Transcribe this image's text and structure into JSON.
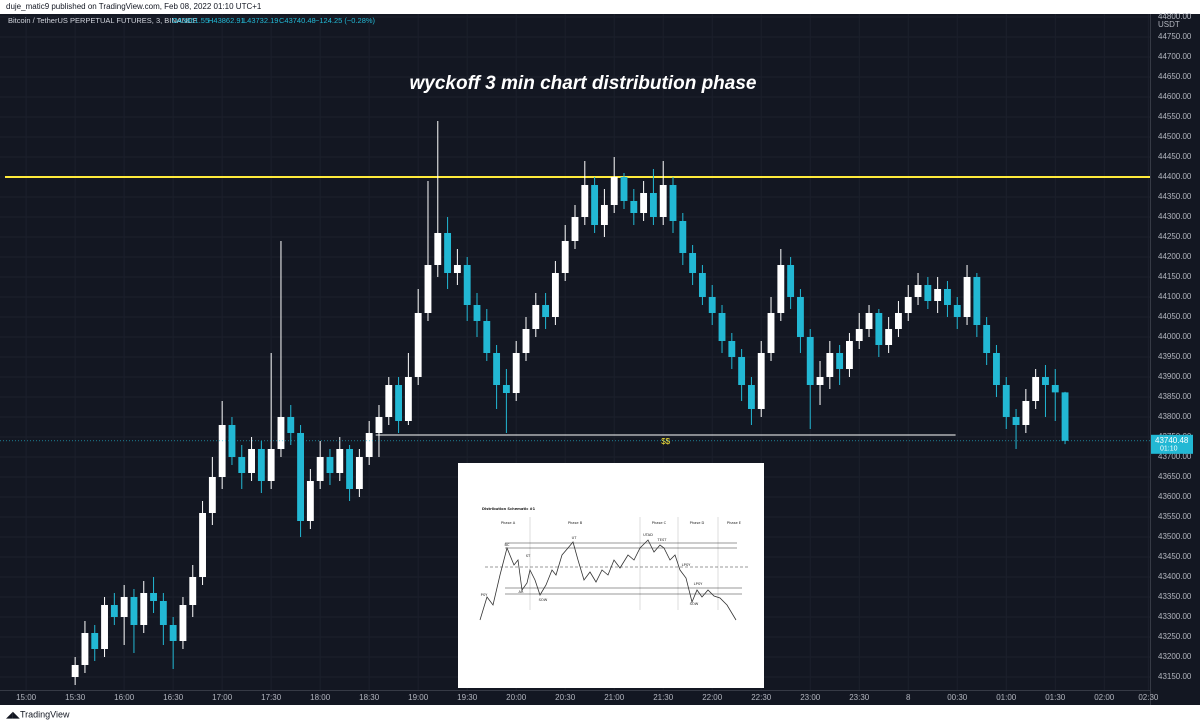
{
  "header": {
    "publisher": "duje_matic9 published on TradingView.com, Feb 08, 2022 01:10 UTC+1",
    "brand": "TradingView"
  },
  "chart_data": {
    "type": "candlestick",
    "title": "wyckoff 3 min chart distribution phase",
    "symbol": "Bitcoin / TetherUS PERPETUAL FUTURES, 3, BINANCE",
    "ohlc_text": [
      "O43861.55",
      "H43862.91",
      "L43732.19",
      "C43740.48",
      "−124.25 (−0.28%)"
    ],
    "currency": "USDT",
    "last_time": "01:10",
    "up_color": "#ffffff",
    "down_color": "#22b8d4",
    "xlim": [
      -16,
      688
    ],
    "ylim": [
      43117.5,
      44807.5
    ],
    "xticks": [
      {
        "value": 0,
        "label": "15:00"
      },
      {
        "value": 30,
        "label": "15:30"
      },
      {
        "value": 60,
        "label": "16:00"
      },
      {
        "value": 90,
        "label": "16:30"
      },
      {
        "value": 120,
        "label": "17:00"
      },
      {
        "value": 150,
        "label": "17:30"
      },
      {
        "value": 180,
        "label": "18:00"
      },
      {
        "value": 210,
        "label": "18:30"
      },
      {
        "value": 240,
        "label": "19:00"
      },
      {
        "value": 270,
        "label": "19:30"
      },
      {
        "value": 300,
        "label": "20:00"
      },
      {
        "value": 330,
        "label": "20:30"
      },
      {
        "value": 360,
        "label": "21:00"
      },
      {
        "value": 390,
        "label": "21:30"
      },
      {
        "value": 420,
        "label": "22:00"
      },
      {
        "value": 450,
        "label": "22:30"
      },
      {
        "value": 480,
        "label": "23:00"
      },
      {
        "value": 510,
        "label": "23:30"
      },
      {
        "value": 540,
        "label": "8"
      },
      {
        "value": 570,
        "label": "00:30"
      },
      {
        "value": 600,
        "label": "01:00"
      },
      {
        "value": 630,
        "label": "01:30"
      },
      {
        "value": 660,
        "label": "02:00"
      },
      {
        "value": 687,
        "label": "02:30"
      }
    ],
    "yticks": [
      {
        "value": 44800,
        "label": "44800.00"
      },
      {
        "value": 44750,
        "label": "44750.00"
      },
      {
        "value": 44700,
        "label": "44700.00"
      },
      {
        "value": 44650,
        "label": "44650.00"
      },
      {
        "value": 44600,
        "label": "44600.00"
      },
      {
        "value": 44550,
        "label": "44550.00"
      },
      {
        "value": 44500,
        "label": "44500.00"
      },
      {
        "value": 44450,
        "label": "44450.00"
      },
      {
        "value": 44400,
        "label": "44400.00"
      },
      {
        "value": 44350,
        "label": "44350.00"
      },
      {
        "value": 44300,
        "label": "44300.00"
      },
      {
        "value": 44250,
        "label": "44250.00"
      },
      {
        "value": 44200,
        "label": "44200.00"
      },
      {
        "value": 44150,
        "label": "44150.00"
      },
      {
        "value": 44100,
        "label": "44100.00"
      },
      {
        "value": 44050,
        "label": "44050.00"
      },
      {
        "value": 44000,
        "label": "44000.00"
      },
      {
        "value": 43950,
        "label": "43950.00"
      },
      {
        "value": 43900,
        "label": "43900.00"
      },
      {
        "value": 43850,
        "label": "43850.00"
      },
      {
        "value": 43800,
        "label": "43800.00"
      },
      {
        "value": 43750,
        "label": "43750.00"
      },
      {
        "value": 43700,
        "label": "43700.00"
      },
      {
        "value": 43650,
        "label": "43650.00"
      },
      {
        "value": 43600,
        "label": "43600.00"
      },
      {
        "value": 43550,
        "label": "43550.00"
      },
      {
        "value": 43500,
        "label": "43500.00"
      },
      {
        "value": 43450,
        "label": "43450.00"
      },
      {
        "value": 43400,
        "label": "43400.00"
      },
      {
        "value": 43350,
        "label": "43350.00"
      },
      {
        "value": 43300,
        "label": "43300.00"
      },
      {
        "value": 43250,
        "label": "43250.00"
      },
      {
        "value": 43200,
        "label": "43200.00"
      },
      {
        "value": 43150,
        "label": "43150.00"
      }
    ],
    "grid": true,
    "levels": [
      {
        "value": 44400,
        "color": "#ffeb3b"
      },
      {
        "value": 43755,
        "from": 214,
        "to": 569,
        "color": "#ffffff",
        "label": "$$"
      }
    ],
    "x": [
      30,
      36,
      42,
      48,
      54,
      60,
      66,
      72,
      78,
      84,
      90,
      96,
      102,
      108,
      114,
      120,
      126,
      132,
      138,
      144,
      150,
      156,
      162,
      168,
      174,
      180,
      186,
      192,
      198,
      204,
      210,
      216,
      222,
      228,
      234,
      240,
      246,
      252,
      258,
      264,
      270,
      276,
      282,
      288,
      294,
      300,
      306,
      312,
      318,
      324,
      330,
      336,
      342,
      348,
      354,
      360,
      366,
      372,
      378,
      384,
      390,
      396,
      402,
      408,
      414,
      420,
      426,
      432,
      438,
      444,
      450,
      456,
      462,
      468,
      474,
      480,
      486,
      492,
      498,
      504,
      510,
      516,
      522,
      528,
      534,
      540,
      546,
      552,
      558,
      564,
      570,
      576,
      582,
      588,
      594,
      600,
      606,
      612,
      618,
      624,
      630,
      636
    ],
    "ohlc": [
      [
        43150,
        43200,
        43130,
        43180
      ],
      [
        43180,
        43290,
        43160,
        43260
      ],
      [
        43260,
        43280,
        43190,
        43220
      ],
      [
        43220,
        43350,
        43200,
        43330
      ],
      [
        43330,
        43360,
        43280,
        43300
      ],
      [
        43300,
        43380,
        43230,
        43350
      ],
      [
        43350,
        43370,
        43210,
        43280
      ],
      [
        43280,
        43390,
        43260,
        43360
      ],
      [
        43360,
        43400,
        43310,
        43340
      ],
      [
        43340,
        43360,
        43230,
        43280
      ],
      [
        43280,
        43300,
        43170,
        43240
      ],
      [
        43240,
        43350,
        43220,
        43330
      ],
      [
        43330,
        43430,
        43300,
        43400
      ],
      [
        43400,
        43590,
        43380,
        43560
      ],
      [
        43560,
        43700,
        43530,
        43650
      ],
      [
        43650,
        43840,
        43620,
        43780
      ],
      [
        43780,
        43800,
        43680,
        43700
      ],
      [
        43700,
        43730,
        43620,
        43660
      ],
      [
        43660,
        43750,
        43640,
        43720
      ],
      [
        43720,
        43740,
        43610,
        43640
      ],
      [
        43640,
        43960,
        43620,
        43720
      ],
      [
        43720,
        44240,
        43700,
        43800
      ],
      [
        43800,
        43830,
        43730,
        43760
      ],
      [
        43760,
        43780,
        43500,
        43540
      ],
      [
        43540,
        43670,
        43520,
        43640
      ],
      [
        43640,
        43740,
        43620,
        43700
      ],
      [
        43700,
        43720,
        43630,
        43660
      ],
      [
        43660,
        43750,
        43640,
        43720
      ],
      [
        43720,
        43730,
        43590,
        43620
      ],
      [
        43620,
        43720,
        43600,
        43700
      ],
      [
        43700,
        43790,
        43680,
        43760
      ],
      [
        43760,
        43830,
        43700,
        43800
      ],
      [
        43800,
        43900,
        43780,
        43880
      ],
      [
        43880,
        43900,
        43760,
        43790
      ],
      [
        43790,
        43960,
        43780,
        43900
      ],
      [
        43900,
        44120,
        43880,
        44060
      ],
      [
        44060,
        44390,
        44040,
        44180
      ],
      [
        44180,
        44540,
        44150,
        44260
      ],
      [
        44260,
        44300,
        44120,
        44160
      ],
      [
        44160,
        44220,
        44130,
        44180
      ],
      [
        44180,
        44200,
        44040,
        44080
      ],
      [
        44080,
        44110,
        44000,
        44040
      ],
      [
        44040,
        44070,
        43940,
        43960
      ],
      [
        43960,
        43980,
        43820,
        43880
      ],
      [
        43880,
        43920,
        43760,
        43860
      ],
      [
        43860,
        43990,
        43840,
        43960
      ],
      [
        43960,
        44050,
        43940,
        44020
      ],
      [
        44020,
        44110,
        44000,
        44080
      ],
      [
        44080,
        44110,
        44020,
        44050
      ],
      [
        44050,
        44190,
        44030,
        44160
      ],
      [
        44160,
        44280,
        44140,
        44240
      ],
      [
        44240,
        44330,
        44220,
        44300
      ],
      [
        44300,
        44440,
        44280,
        44380
      ],
      [
        44380,
        44400,
        44260,
        44280
      ],
      [
        44280,
        44370,
        44250,
        44330
      ],
      [
        44330,
        44450,
        44310,
        44400
      ],
      [
        44400,
        44410,
        44320,
        44340
      ],
      [
        44340,
        44370,
        44280,
        44310
      ],
      [
        44310,
        44390,
        44290,
        44360
      ],
      [
        44360,
        44420,
        44280,
        44300
      ],
      [
        44300,
        44440,
        44280,
        44380
      ],
      [
        44380,
        44400,
        44260,
        44290
      ],
      [
        44290,
        44310,
        44180,
        44210
      ],
      [
        44210,
        44230,
        44130,
        44160
      ],
      [
        44160,
        44180,
        44080,
        44100
      ],
      [
        44100,
        44130,
        44030,
        44060
      ],
      [
        44060,
        44080,
        43960,
        43990
      ],
      [
        43990,
        44010,
        43920,
        43950
      ],
      [
        43950,
        43970,
        43840,
        43880
      ],
      [
        43880,
        43900,
        43780,
        43820
      ],
      [
        43820,
        43990,
        43800,
        43960
      ],
      [
        43960,
        44100,
        43940,
        44060
      ],
      [
        44060,
        44220,
        44040,
        44180
      ],
      [
        44180,
        44200,
        44070,
        44100
      ],
      [
        44100,
        44120,
        43960,
        44000
      ],
      [
        44000,
        44020,
        43770,
        43880
      ],
      [
        43880,
        43940,
        43830,
        43900
      ],
      [
        43900,
        43990,
        43870,
        43960
      ],
      [
        43960,
        43980,
        43880,
        43920
      ],
      [
        43920,
        44010,
        43900,
        43990
      ],
      [
        43990,
        44060,
        43970,
        44020
      ],
      [
        44020,
        44080,
        44000,
        44060
      ],
      [
        44060,
        44070,
        43950,
        43980
      ],
      [
        43980,
        44050,
        43960,
        44020
      ],
      [
        44020,
        44090,
        44000,
        44060
      ],
      [
        44060,
        44130,
        44040,
        44100
      ],
      [
        44100,
        44160,
        44080,
        44130
      ],
      [
        44130,
        44150,
        44070,
        44090
      ],
      [
        44090,
        44150,
        44060,
        44120
      ],
      [
        44120,
        44140,
        44050,
        44080
      ],
      [
        44080,
        44100,
        44020,
        44050
      ],
      [
        44050,
        44180,
        44030,
        44150
      ],
      [
        44150,
        44160,
        44000,
        44030
      ],
      [
        44030,
        44050,
        43930,
        43960
      ],
      [
        43960,
        43980,
        43850,
        43880
      ],
      [
        43880,
        43900,
        43770,
        43800
      ],
      [
        43800,
        43820,
        43720,
        43780
      ],
      [
        43780,
        43870,
        43760,
        43840
      ],
      [
        43840,
        43920,
        43820,
        43900
      ],
      [
        43900,
        43930,
        43800,
        43880
      ],
      [
        43880,
        43920,
        43790,
        43861.55
      ],
      [
        43861.55,
        43862.91,
        43732.19,
        43740.48
      ]
    ]
  },
  "inset": {
    "title": "Distribution Schematic #1",
    "phases": [
      "Phase A",
      "Phase B",
      "Phase C",
      "Phase D",
      "Phase E"
    ],
    "events": [
      "PSY",
      "BC",
      "AR",
      "ST",
      "UT",
      "UTAD",
      "TEST",
      "LPSY",
      "LPSY",
      "SOW",
      "SOW"
    ]
  }
}
